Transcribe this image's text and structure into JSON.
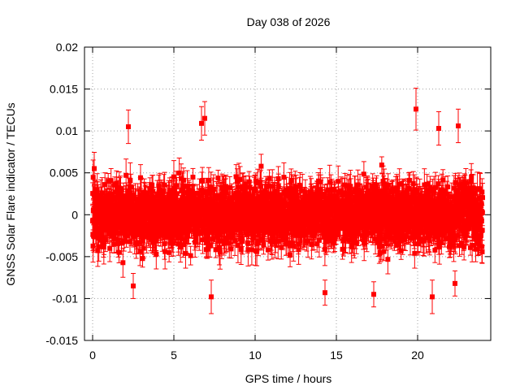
{
  "chart_data": {
    "type": "scatter",
    "title": "Day 038 of 2026",
    "xlabel": "GPS time / hours",
    "ylabel": "GNSS Solar Flare indicator / TECUs",
    "xlim": [
      -0.5,
      24.5
    ],
    "ylim": [
      -0.015,
      0.02
    ],
    "x_ticks": [
      0,
      5,
      10,
      15,
      20
    ],
    "x_tick_labels": [
      "0",
      "5",
      "10",
      "15",
      "20"
    ],
    "y_ticks": [
      -0.015,
      -0.01,
      -0.005,
      0,
      0.005,
      0.01,
      0.015,
      0.02
    ],
    "y_tick_labels": [
      "-0.015",
      "-0.01",
      "-0.005",
      "0",
      "0.005",
      "0.01",
      "0.015",
      "0.02"
    ],
    "grid": true,
    "series": [
      {
        "color": "#ff0000",
        "marker": "square",
        "error_bars": true,
        "x_range": [
          0,
          24
        ],
        "sample_interval_hours": 0.00833,
        "typical_spread": 0.003,
        "typical_error": 0.0015,
        "highlight_points": [
          {
            "x": 2.2,
            "y": 0.0105,
            "err": 0.002
          },
          {
            "x": 6.7,
            "y": 0.0109,
            "err": 0.002
          },
          {
            "x": 6.9,
            "y": 0.0115,
            "err": 0.002
          },
          {
            "x": 19.9,
            "y": 0.0126,
            "err": 0.0025
          },
          {
            "x": 21.3,
            "y": 0.0103,
            "err": 0.002
          },
          {
            "x": 22.5,
            "y": 0.0106,
            "err": 0.002
          },
          {
            "x": 2.5,
            "y": -0.0085,
            "err": 0.0015
          },
          {
            "x": 7.3,
            "y": -0.0098,
            "err": 0.002
          },
          {
            "x": 14.3,
            "y": -0.0093,
            "err": 0.0015
          },
          {
            "x": 17.3,
            "y": -0.0095,
            "err": 0.0015
          },
          {
            "x": 20.9,
            "y": -0.0098,
            "err": 0.002
          },
          {
            "x": 22.3,
            "y": -0.0082,
            "err": 0.0015
          }
        ]
      }
    ]
  }
}
